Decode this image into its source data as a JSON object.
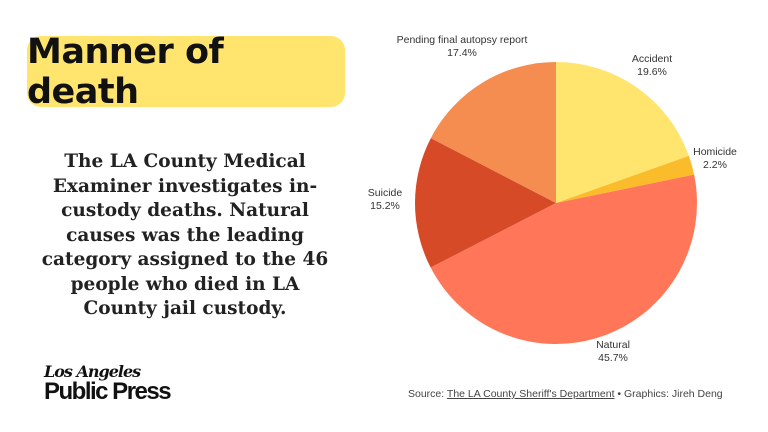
{
  "title": "Manner of death",
  "description": "The LA County Medical Examiner investigates in-custody deaths. Natural causes was the leading category assigned to the 46 people who died in LA County jail custody.",
  "logo": {
    "line1": "Los Angeles",
    "line2": "Public Press"
  },
  "footer": {
    "source_prefix": "Source: ",
    "source_link": "The LA County Sheriff's Department",
    "credit": " • Graphics: Jireh Deng"
  },
  "chart_data": {
    "type": "pie",
    "title": "Manner of death",
    "start": "top",
    "direction": "clockwise",
    "slices": [
      {
        "label": "Accident",
        "value": 19.6,
        "value_label": "19.6%",
        "color": "#FFE46E"
      },
      {
        "label": "Homicide",
        "value": 2.2,
        "value_label": "2.2%",
        "color": "#FBBC2C"
      },
      {
        "label": "Natural",
        "value": 45.7,
        "value_label": "45.7%",
        "color": "#FF7758"
      },
      {
        "label": "Suicide",
        "value": 15.2,
        "value_label": "15.2%",
        "color": "#D64A27"
      },
      {
        "label": "Pending final autopsy report",
        "value": 17.4,
        "value_label": "17.4%",
        "color": "#F58C50"
      }
    ]
  }
}
